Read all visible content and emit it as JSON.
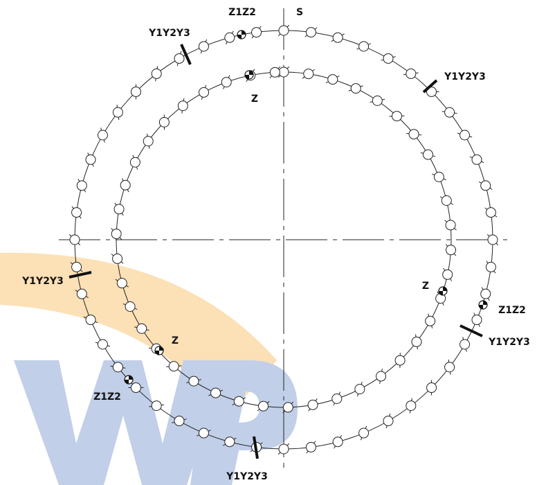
{
  "labels": [
    "S",
    "Z1Z2",
    "Y1Y2Y3",
    "Z",
    "Y1Y2Y3",
    "Y1Y2Y3",
    "Z",
    "Z1Z2",
    "Y1Y2Y3",
    "Z",
    "Z1Z2",
    "Y1Y2Y3"
  ]
}
